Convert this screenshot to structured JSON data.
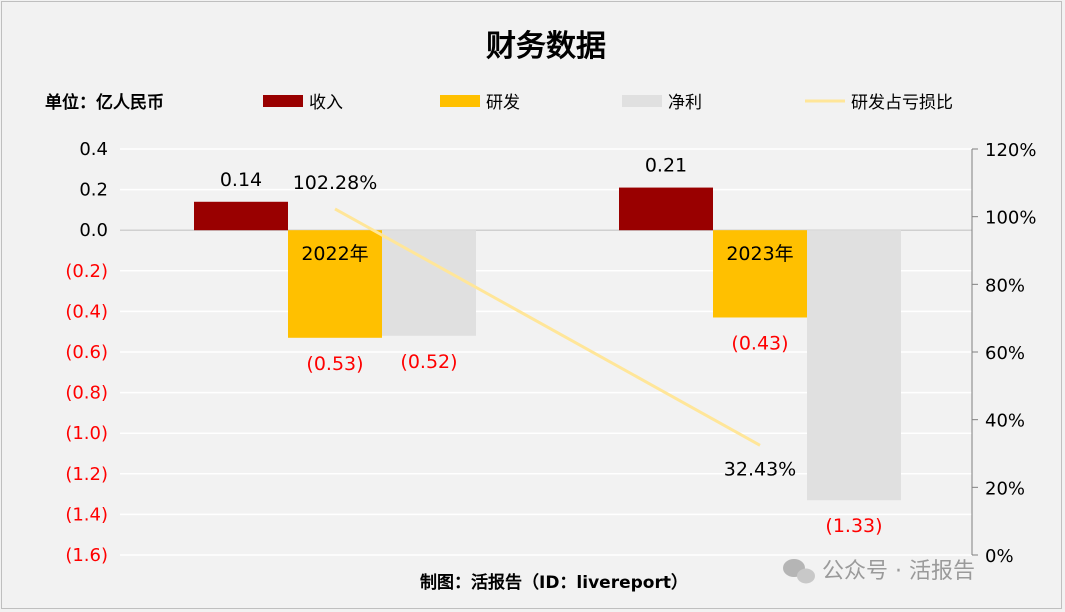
{
  "chart_data": {
    "type": "bar",
    "title": "财务数据",
    "unit_label": "单位：亿人民币",
    "categories": [
      "2022年",
      "2023年"
    ],
    "series": [
      {
        "name": "收入",
        "kind": "bar",
        "axis": "left",
        "color": "#990000",
        "values": [
          0.14,
          0.21
        ],
        "labels": [
          "0.14",
          "0.21"
        ]
      },
      {
        "name": "研发",
        "kind": "bar",
        "axis": "left",
        "color": "#ffc000",
        "values": [
          -0.53,
          -0.43
        ],
        "labels": [
          "(0.53)",
          "(0.43)"
        ]
      },
      {
        "name": "净利",
        "kind": "bar",
        "axis": "left",
        "color": "#e0e0e0",
        "values": [
          -0.52,
          -1.33
        ],
        "labels": [
          "(0.52)",
          "(1.33)"
        ]
      },
      {
        "name": "研发占亏损比",
        "kind": "line",
        "axis": "right",
        "color": "#ffe699",
        "values": [
          1.0228,
          0.3243
        ],
        "labels": [
          "102.28%",
          "32.43%"
        ]
      }
    ],
    "y_left": {
      "min": -1.6,
      "max": 0.4,
      "ticks": [
        0.4,
        0.2,
        0.0,
        -0.2,
        -0.4,
        -0.6,
        -0.8,
        -1.0,
        -1.2,
        -1.4,
        -1.6
      ],
      "tick_labels": [
        "0.4",
        "0.2",
        "0.0",
        "(0.2)",
        "(0.4)",
        "(0.6)",
        "(0.8)",
        "(1.0)",
        "(1.2)",
        "(1.4)",
        "(1.6)"
      ]
    },
    "y_right": {
      "min": 0,
      "max": 1.2,
      "ticks": [
        1.2,
        1.0,
        0.8,
        0.6,
        0.4,
        0.2,
        0.0
      ],
      "tick_labels": [
        "120%",
        "100%",
        "80%",
        "60%",
        "40%",
        "20%",
        "0%"
      ]
    },
    "grid": true,
    "legend_position": "top",
    "negative_color": "#ff0000"
  },
  "footer": "制图：活报告（ID：livereport）",
  "watermark": "公众号 · 活报告"
}
